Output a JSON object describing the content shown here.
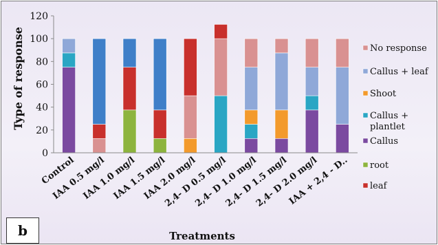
{
  "panel_label": "b",
  "chart_data": {
    "type": "bar",
    "stacked": true,
    "title": "",
    "xlabel": "Treatments",
    "ylabel": "Type of response",
    "ylim": [
      0,
      120
    ],
    "yticks": [
      0,
      20,
      40,
      60,
      80,
      100,
      120
    ],
    "grid": false,
    "legend_position": "right",
    "categories": [
      "Control",
      "IAA 0.5 mg/l",
      "IAA 1.0 mg/l",
      "IAA 1.5 mg/l",
      "IAA 2.0 mg/l",
      "2,4- D 0.5 mg/l",
      "2,4- D 1.0 mg/l",
      "2,4- D 1.5 mg/l",
      "2,4- D 2.0 mg/l",
      "IAA + 2,4 - D.."
    ],
    "series": [
      {
        "name": "Callus",
        "color": "#7b4aa0",
        "values": [
          75,
          0,
          0,
          0,
          0,
          0,
          12.5,
          12.5,
          37.5,
          25
        ]
      },
      {
        "name": "Callus + plantlet",
        "color": "#2aa6c4",
        "values": [
          12.5,
          0,
          0,
          0,
          0,
          50,
          12.5,
          0,
          12.5,
          0
        ]
      },
      {
        "name": "Shoot",
        "color": "#f39a2c",
        "values": [
          0,
          0,
          0,
          0,
          12.5,
          0,
          12.5,
          25,
          0,
          0
        ]
      },
      {
        "name": "Callus + leaf",
        "color": "#8fa8d8",
        "values": [
          12.5,
          0,
          0,
          0,
          0,
          0,
          37.5,
          50,
          25,
          50
        ]
      },
      {
        "name": "No response",
        "color": "#d99191",
        "values": [
          0,
          12.5,
          0,
          0,
          37.5,
          50,
          25,
          12.5,
          25,
          25
        ]
      },
      {
        "name": "root",
        "color": "#8db43e",
        "values": [
          0,
          0,
          37.5,
          12.5,
          0,
          0,
          0,
          0,
          0,
          0
        ]
      },
      {
        "name": "leaf",
        "color": "#c8302c",
        "values": [
          0,
          12.5,
          37.5,
          25,
          50,
          12.5,
          0,
          0,
          0,
          0
        ]
      },
      {
        "name": "",
        "color": "#3f7fc8",
        "values": [
          0,
          75,
          25,
          62.5,
          0,
          0,
          0,
          0,
          0,
          0
        ]
      }
    ],
    "legend": [
      {
        "series": 4,
        "label": "No response"
      },
      {
        "series": 3,
        "label": "Callus + leaf"
      },
      {
        "series": 2,
        "label": "Shoot"
      },
      {
        "series": 1,
        "label": "Callus + plantlet"
      },
      {
        "series": 0,
        "label": "Callus"
      },
      {
        "series": 5,
        "label": "root"
      },
      {
        "series": 6,
        "label": "leaf"
      }
    ]
  }
}
